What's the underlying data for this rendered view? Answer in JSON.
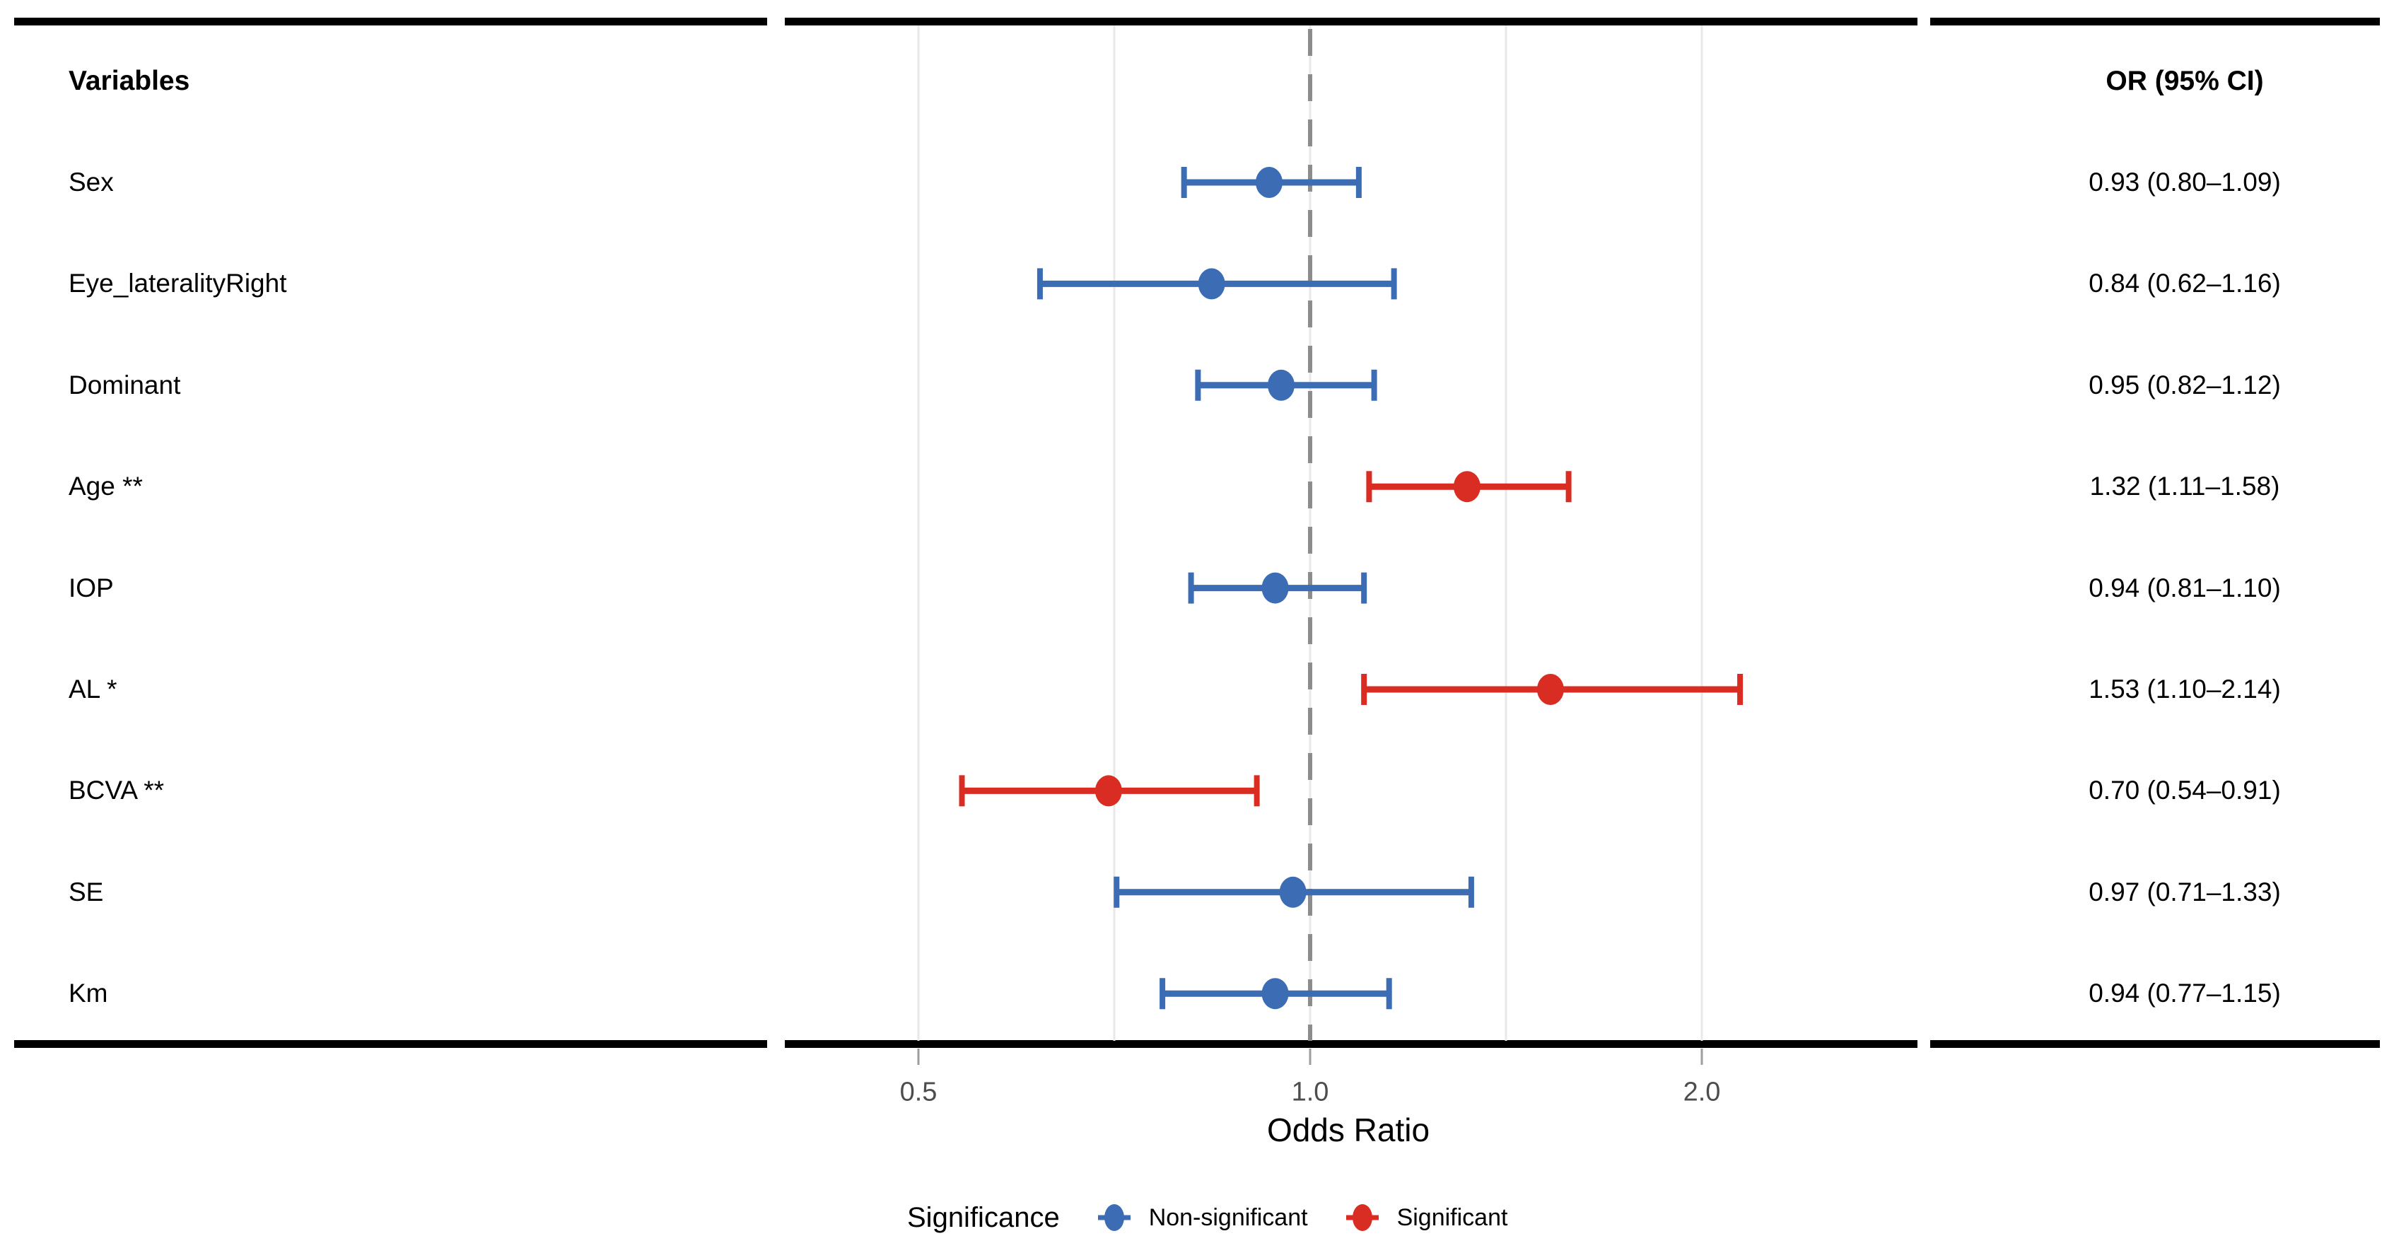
{
  "figure": {
    "left_header": "Variables",
    "right_header": "OR (95% CI)"
  },
  "axis": {
    "title": "Odds Ratio",
    "scale": "log",
    "ticks": [
      {
        "label": "0.5",
        "value": 0.5
      },
      {
        "label": "1.0",
        "value": 1.0
      },
      {
        "label": "2.0",
        "value": 2.0
      }
    ]
  },
  "legend": {
    "title": "Significance",
    "items": [
      {
        "label": "Non-significant",
        "color": "#3B6CB4"
      },
      {
        "label": "Significant",
        "color": "#D92C22"
      }
    ]
  },
  "chart_data": {
    "type": "scatter",
    "variant": "forest-plot",
    "x_scale": "log",
    "xlim": [
      0.42,
      2.9
    ],
    "reference_line": 1.0,
    "gridlines": [
      0.5,
      0.7071,
      1.0,
      1.4142,
      2.0
    ],
    "grid": true,
    "legend_position": "bottom",
    "xlabel": "Odds Ratio",
    "rows": [
      {
        "label": "Sex",
        "or": 0.93,
        "ci_low": 0.8,
        "ci_high": 1.09,
        "significant": false,
        "or_ci_text": "0.93 (0.80–1.09)"
      },
      {
        "label": "Eye_lateralityRight",
        "or": 0.84,
        "ci_low": 0.62,
        "ci_high": 1.16,
        "significant": false,
        "or_ci_text": "0.84 (0.62–1.16)"
      },
      {
        "label": "Dominant",
        "or": 0.95,
        "ci_low": 0.82,
        "ci_high": 1.12,
        "significant": false,
        "or_ci_text": "0.95 (0.82–1.12)"
      },
      {
        "label": "Age **",
        "or": 1.32,
        "ci_low": 1.11,
        "ci_high": 1.58,
        "significant": true,
        "or_ci_text": "1.32 (1.11–1.58)"
      },
      {
        "label": "IOP",
        "or": 0.94,
        "ci_low": 0.81,
        "ci_high": 1.1,
        "significant": false,
        "or_ci_text": "0.94 (0.81–1.10)"
      },
      {
        "label": "AL *",
        "or": 1.53,
        "ci_low": 1.1,
        "ci_high": 2.14,
        "significant": true,
        "or_ci_text": "1.53 (1.10–2.14)"
      },
      {
        "label": "BCVA **",
        "or": 0.7,
        "ci_low": 0.54,
        "ci_high": 0.91,
        "significant": true,
        "or_ci_text": "0.70 (0.54–0.91)"
      },
      {
        "label": "SE",
        "or": 0.97,
        "ci_low": 0.71,
        "ci_high": 1.33,
        "significant": false,
        "or_ci_text": "0.97 (0.71–1.33)"
      },
      {
        "label": "Km",
        "or": 0.94,
        "ci_low": 0.77,
        "ci_high": 1.15,
        "significant": false,
        "or_ci_text": "0.94 (0.77–1.15)"
      }
    ],
    "colors": {
      "non_significant": "#3B6CB4",
      "significant": "#D92C22",
      "reference_line": "#8C8C8C",
      "gridline": "#E8E8E8",
      "axis_tick_mark": "#9E9E9E",
      "tick_label": "#4D4D4D",
      "border": "#000000"
    }
  }
}
